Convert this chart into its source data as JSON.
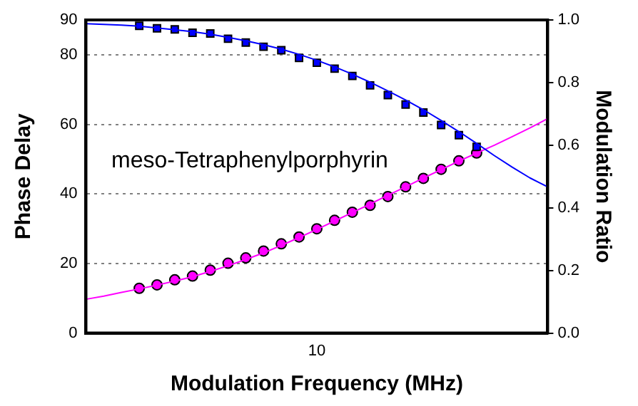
{
  "chart_data": {
    "type": "scatter",
    "xlabel": "Modulation Frequency (MHz)",
    "ylabel": "Phase Delay",
    "y2label": "Modulation Ratio",
    "annotations": [
      "meso-Tetraphenylporphyrin"
    ],
    "grid": "y",
    "legend": false,
    "categories": [
      null,
      null,
      null,
      null,
      null,
      null,
      null,
      null,
      null,
      null,
      null,
      null,
      null,
      "10",
      null,
      null,
      null,
      null,
      null,
      null,
      null,
      null,
      null,
      null,
      null,
      null,
      null
    ],
    "ylim": [
      0,
      90
    ],
    "yticks": [
      0,
      20,
      40,
      60,
      80,
      90
    ],
    "y2lim": [
      0,
      1
    ],
    "y2ticks": [
      {
        "value": 0,
        "label": "0.0"
      },
      0.2,
      0.4,
      0.6,
      0.8,
      {
        "value": 1,
        "label": "1.0"
      }
    ],
    "series": [
      {
        "type": "line",
        "color": "#0000ff",
        "marker": "none",
        "axis": "y",
        "values": [
          88.9,
          88.7,
          88.5,
          88.2,
          87.7,
          87.2,
          86.6,
          85.9,
          85.0,
          84.0,
          82.9,
          81.6,
          80.1,
          78.4,
          76.5,
          74.4,
          72.1,
          69.6,
          67.0,
          64.2,
          61.1,
          57.9,
          54.5,
          51.0,
          47.7,
          44.6,
          42.0
        ]
      },
      {
        "type": "line",
        "color": "#ff00ff",
        "marker": "none",
        "axis": "y2",
        "values": [
          0.108,
          0.118,
          0.13,
          0.141,
          0.153,
          0.166,
          0.18,
          0.197,
          0.215,
          0.235,
          0.256,
          0.28,
          0.305,
          0.331,
          0.358,
          0.385,
          0.412,
          0.44,
          0.467,
          0.495,
          0.522,
          0.549,
          0.575,
          0.6,
          0.627,
          0.655,
          0.685
        ]
      },
      {
        "color": "#0000ff",
        "marker": "square",
        "axis": "y",
        "values": [
          null,
          null,
          null,
          88.3,
          87.6,
          87.3,
          86.3,
          86.1,
          84.6,
          83.5,
          82.3,
          81.3,
          79.1,
          77.7,
          76.0,
          73.9,
          71.2,
          68.4,
          65.7,
          63.4,
          59.8,
          56.9,
          53.5,
          null,
          null,
          null,
          null
        ]
      },
      {
        "color": "#ff00ff",
        "marker": "circle",
        "axis": "y2",
        "values": [
          null,
          null,
          null,
          0.143,
          0.154,
          0.17,
          0.182,
          0.201,
          0.223,
          0.24,
          0.262,
          0.285,
          0.307,
          0.333,
          0.36,
          0.386,
          0.408,
          0.436,
          0.467,
          0.494,
          0.523,
          0.55,
          0.575,
          null,
          null,
          null,
          null
        ]
      }
    ]
  }
}
